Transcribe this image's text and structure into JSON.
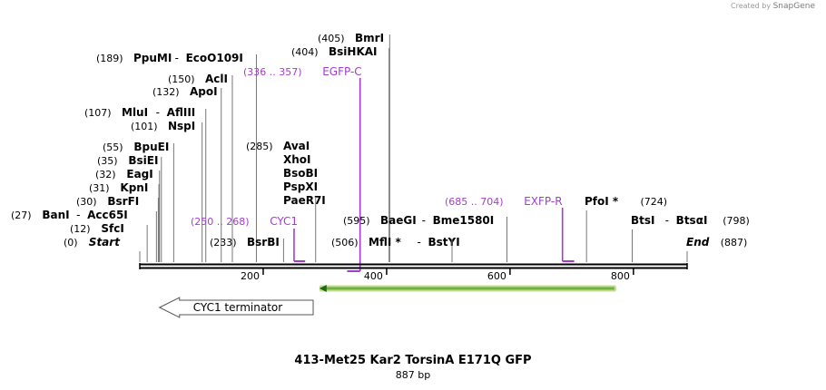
{
  "credit": {
    "prefix": "Created by",
    "brand": "SnapGene"
  },
  "title": "413-Met25 Kar2 TorsinA E171Q GFP",
  "subtitle": "887 bp",
  "sequence_length": 887,
  "ticks": [
    "200",
    "400",
    "600",
    "800"
  ],
  "tick_values": [
    200,
    400,
    600,
    800
  ],
  "sites": [
    {
      "pos": "(0)",
      "bp": 0,
      "name": "Start",
      "italic": true
    },
    {
      "pos": "(12)",
      "bp": 12,
      "name": "SfcI"
    },
    {
      "pos": "(27)",
      "bp": 27,
      "name": "BanI",
      "alt": "Acc65I"
    },
    {
      "pos": "(30)",
      "bp": 30,
      "name": "BsrFI"
    },
    {
      "pos": "(31)",
      "bp": 31,
      "name": "KpnI"
    },
    {
      "pos": "(32)",
      "bp": 32,
      "name": "EagI"
    },
    {
      "pos": "(35)",
      "bp": 35,
      "name": "BsiEI"
    },
    {
      "pos": "(55)",
      "bp": 55,
      "name": "BpuEI"
    },
    {
      "pos": "(101)",
      "bp": 101,
      "name": "NspI"
    },
    {
      "pos": "(107)",
      "bp": 107,
      "name": "MluI",
      "alt": "AflIII"
    },
    {
      "pos": "(132)",
      "bp": 132,
      "name": "ApoI"
    },
    {
      "pos": "(150)",
      "bp": 150,
      "name": "AclI"
    },
    {
      "pos": "(189)",
      "bp": 189,
      "name": "PpuMI",
      "alt": "EcoO109I"
    },
    {
      "pos": "(233)",
      "bp": 233,
      "name": "BsrBI"
    },
    {
      "pos": "(285)",
      "bp": 285,
      "name": "AvaI",
      "stack": [
        "XhoI",
        "BsoBI",
        "PspXI",
        "PaeR7I"
      ]
    },
    {
      "pos": "(404)",
      "bp": 404,
      "name": "BsiHKAI"
    },
    {
      "pos": "(405)",
      "bp": 405,
      "name": "BmrI"
    },
    {
      "pos": "(506)",
      "bp": 506,
      "name": "MflI *",
      "alt": "BstYI"
    },
    {
      "pos": "(595)",
      "bp": 595,
      "name": "BaeGI",
      "alt": "Bme1580I"
    },
    {
      "pos": "(724)",
      "bp": 724,
      "name": "PfoI *"
    },
    {
      "pos": "(798)",
      "bp": 798,
      "name": "BtsI",
      "alt": "BtsαI"
    },
    {
      "pos": "(887)",
      "bp": 887,
      "name": "End",
      "italic": true
    }
  ],
  "primers": [
    {
      "range": "(250 .. 268)",
      "name": "CYC1",
      "start": 250,
      "end": 268,
      "dir": "fwd"
    },
    {
      "range": "(336 .. 357)",
      "name": "EGFP-C",
      "start": 336,
      "end": 357,
      "dir": "rev"
    },
    {
      "range": "(685 .. 704)",
      "name": "EXFP-R",
      "start": 685,
      "end": 704,
      "dir": "fwd"
    }
  ],
  "features": [
    {
      "name": "CYC1 terminator",
      "start": 32,
      "end": 281,
      "dir": "left",
      "type": "terminator"
    },
    {
      "name": "",
      "start": 291,
      "end": 772,
      "dir": "left",
      "type": "cds"
    }
  ],
  "colors": {
    "backbone": "#000000",
    "primer": "#a43bd0",
    "cds_fill": "#6db33f",
    "cds_edge": "#c6dc92",
    "cds_arrow": "#1e6a18",
    "terminator_fill": "#ffffff",
    "terminator_edge": "#555555",
    "site_line": "#777777"
  }
}
